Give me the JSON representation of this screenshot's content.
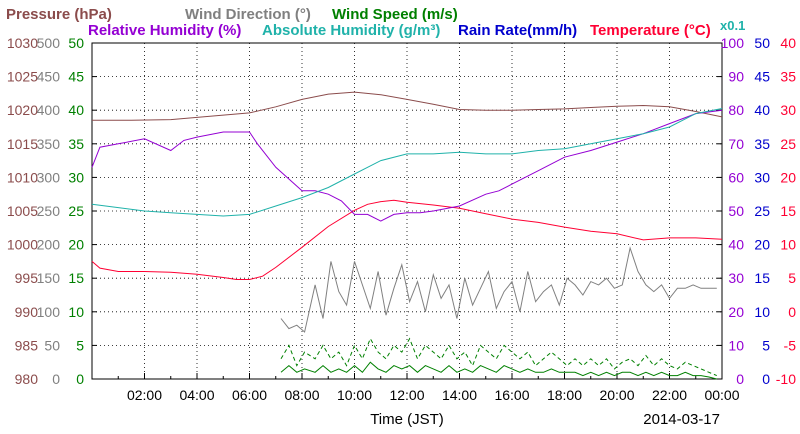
{
  "chart_data": {
    "type": "line",
    "date": "2014-03-17",
    "xlabel": "Time (JST)",
    "x_ticks": [
      "02:00",
      "04:00",
      "06:00",
      "08:00",
      "10:00",
      "12:00",
      "14:00",
      "16:00",
      "18:00",
      "20:00",
      "22:00",
      "00:00"
    ],
    "x_range_hours": [
      0,
      24
    ],
    "grid": true,
    "colors": {
      "pressure": "#8b4c4c",
      "wind_direction": "#808080",
      "wind_speed": "#008000",
      "relative_humidity": "#9400d3",
      "absolute_humidity": "#20b2aa",
      "rain_rate": "#0000cd",
      "temperature": "#ff0033"
    },
    "legend": {
      "row1": [
        {
          "key": "pressure",
          "label": "Pressure (hPa)"
        },
        {
          "key": "wind_direction",
          "label": "Wind Direction (°)"
        },
        {
          "key": "wind_speed",
          "label": "Wind Speed (m/s)"
        }
      ],
      "row2": [
        {
          "key": "relative_humidity",
          "label": "Relative Humidity (%)"
        },
        {
          "key": "absolute_humidity",
          "label": "Absolute Humidity (g/m³)"
        },
        {
          "key": "rain_rate",
          "label": "Rain Rate(mm/h)"
        },
        {
          "key": "temperature",
          "label": "Temperature (°C)"
        }
      ],
      "abs_humidity_scale_note": "x0.1"
    },
    "axes": {
      "pressure": {
        "ticks": [
          "1030",
          "1025",
          "1020",
          "1015",
          "1010",
          "1005",
          "1000",
          "995",
          "990",
          "985",
          "980"
        ],
        "range": [
          980,
          1030
        ]
      },
      "wind_direction": {
        "ticks": [
          "500",
          "450",
          "400",
          "350",
          "300",
          "250",
          "200",
          "150",
          "100",
          "50",
          "0"
        ],
        "range": [
          0,
          500
        ]
      },
      "wind_speed": {
        "ticks": [
          "50",
          "45",
          "40",
          "35",
          "30",
          "25",
          "20",
          "15",
          "10",
          "5",
          "0"
        ],
        "range": [
          0,
          50
        ]
      },
      "relative_humidity": {
        "ticks": [
          "100",
          "90",
          "80",
          "70",
          "60",
          "50",
          "40",
          "30",
          "20",
          "10",
          "0"
        ],
        "range": [
          0,
          100
        ]
      },
      "rain_rate": {
        "ticks": [
          "50",
          "45",
          "40",
          "35",
          "30",
          "25",
          "20",
          "15",
          "10",
          "5",
          "0"
        ],
        "range": [
          0,
          50
        ]
      },
      "temperature": {
        "ticks": [
          "40",
          "35",
          "30",
          "25",
          "20",
          "15",
          "10",
          "5",
          "0",
          "-5",
          "-10"
        ],
        "range": [
          -10,
          40
        ]
      }
    },
    "series": [
      {
        "name": "Pressure (hPa)",
        "key": "pressure",
        "axis": "pressure",
        "style": "solid",
        "x": [
          0,
          1.5,
          3,
          4.5,
          6,
          7,
          8,
          9,
          10,
          11,
          12,
          13,
          14,
          15,
          16,
          17,
          18,
          19,
          20,
          21,
          22,
          23,
          24
        ],
        "y": [
          1018.5,
          1018.5,
          1018.6,
          1019.1,
          1019.6,
          1020.5,
          1021.6,
          1022.4,
          1022.7,
          1022.3,
          1021.6,
          1020.9,
          1020.1,
          1020,
          1020,
          1020.1,
          1020.2,
          1020.4,
          1020.6,
          1020.7,
          1020.5,
          1019.8,
          1019
        ]
      },
      {
        "name": "Temperature (°C)",
        "key": "temperature",
        "axis": "temperature",
        "style": "solid",
        "x": [
          0,
          0.3,
          1,
          2,
          3,
          4,
          5,
          5.5,
          6,
          6.5,
          7,
          8,
          9,
          10,
          10.5,
          11,
          11.5,
          12,
          13,
          14,
          15,
          16,
          17,
          18,
          19,
          20,
          21,
          22,
          23,
          24
        ],
        "y": [
          7.5,
          6.5,
          6,
          6,
          5.9,
          5.6,
          5.1,
          4.8,
          4.8,
          5.3,
          6.6,
          9.6,
          12.7,
          15.1,
          16,
          16.4,
          16.6,
          16.3,
          15.9,
          15.4,
          14.6,
          13.8,
          13.3,
          12.6,
          12,
          11.6,
          10.7,
          11,
          11,
          10.8
        ]
      },
      {
        "name": "Relative Humidity (%)",
        "key": "relative_humidity",
        "axis": "relative_humidity",
        "style": "solid",
        "x": [
          0,
          0.3,
          1,
          2,
          3,
          3.5,
          4,
          5,
          5.5,
          6,
          6.3,
          7,
          8,
          8.5,
          9,
          9.5,
          10,
          10.5,
          11,
          11.5,
          12,
          12.5,
          13,
          14,
          15,
          15.5,
          16,
          17,
          18,
          19,
          20,
          21,
          22,
          23,
          24
        ],
        "y": [
          63,
          69,
          70,
          71.5,
          68,
          71,
          72,
          73.5,
          73.5,
          73.5,
          70,
          63,
          56,
          56,
          55,
          53,
          49,
          49,
          47,
          49,
          49.5,
          49.5,
          50,
          51.5,
          55,
          56,
          58,
          62,
          66,
          68,
          70.5,
          73,
          76,
          79,
          80
        ]
      },
      {
        "name": "Absolute Humidity (g/m³)",
        "key": "absolute_humidity",
        "axis": "relative_humidity",
        "style": "solid",
        "x": [
          0,
          1,
          2,
          3,
          4,
          5,
          6,
          7,
          8,
          9,
          10,
          10.5,
          11,
          12,
          13,
          14,
          15,
          16,
          17,
          18,
          19,
          20,
          21,
          22,
          23,
          24
        ],
        "y": [
          52,
          51,
          50,
          49.5,
          49,
          48.5,
          49,
          51.5,
          54,
          57,
          61,
          63,
          65,
          67,
          67,
          67.5,
          67,
          67,
          68,
          68.5,
          70,
          71.5,
          73,
          75,
          79,
          80.5
        ]
      },
      {
        "name": "Wind Direction (°)",
        "key": "wind_direction",
        "axis": "wind_direction",
        "style": "solid",
        "x": [
          7.2,
          7.5,
          7.8,
          8.1,
          8.5,
          8.8,
          9.1,
          9.4,
          9.7,
          10.0,
          10.3,
          10.6,
          10.9,
          11.2,
          11.5,
          11.8,
          12.1,
          12.4,
          12.7,
          13.0,
          13.3,
          13.6,
          13.9,
          14.2,
          14.5,
          14.8,
          15.1,
          15.4,
          15.7,
          16.0,
          16.3,
          16.6,
          16.9,
          17.2,
          17.5,
          17.8,
          18.1,
          18.4,
          18.7,
          19.0,
          19.3,
          19.6,
          19.9,
          20.2,
          20.5,
          20.8,
          21.1,
          21.4,
          21.7,
          22.0,
          22.3,
          22.6,
          22.9,
          23.2,
          23.5,
          23.8
        ],
        "y": [
          90,
          75,
          80,
          70,
          140,
          90,
          175,
          130,
          110,
          175,
          140,
          105,
          160,
          95,
          135,
          170,
          115,
          145,
          100,
          155,
          120,
          140,
          90,
          150,
          110,
          135,
          160,
          105,
          130,
          145,
          100,
          160,
          115,
          130,
          140,
          110,
          150,
          140,
          125,
          145,
          140,
          150,
          135,
          140,
          195,
          160,
          140,
          130,
          140,
          120,
          135,
          135,
          140,
          135,
          135,
          135
        ]
      },
      {
        "name": "Wind Speed (m/s)",
        "key": "wind_speed",
        "axis": "wind_speed",
        "style": "dashed",
        "x": [
          7.2,
          7.5,
          7.8,
          8.1,
          8.5,
          8.8,
          9.1,
          9.4,
          9.7,
          10.0,
          10.3,
          10.6,
          10.9,
          11.2,
          11.5,
          11.8,
          12.1,
          12.4,
          12.7,
          13.0,
          13.3,
          13.6,
          13.9,
          14.2,
          14.5,
          14.8,
          15.1,
          15.4,
          15.7,
          16.0,
          16.3,
          16.6,
          16.9,
          17.2,
          17.5,
          17.8,
          18.1,
          18.4,
          18.7,
          19.0,
          19.3,
          19.6,
          19.9,
          20.2,
          20.5,
          20.8,
          21.1,
          21.4,
          21.7,
          22.0,
          22.3,
          22.6,
          22.9,
          23.2,
          23.5,
          23.8
        ],
        "y": [
          3,
          5,
          2,
          4,
          3,
          5,
          3,
          4,
          2,
          5,
          3,
          6,
          4,
          3,
          5,
          4,
          6,
          3,
          5,
          4,
          3,
          5,
          3,
          4,
          2,
          5,
          4,
          3,
          5,
          4,
          3,
          4,
          2,
          3,
          4,
          3,
          2,
          3,
          2,
          3,
          2,
          3,
          1.5,
          2.5,
          3,
          2,
          3.5,
          2,
          3,
          2,
          1.5,
          2.5,
          2,
          1.5,
          1,
          0.5
        ]
      },
      {
        "name": "Wind Speed (m/s)",
        "key": "wind_speed",
        "axis": "wind_speed",
        "style": "solid",
        "x": [
          7.2,
          7.5,
          7.8,
          8.1,
          8.5,
          8.8,
          9.1,
          9.4,
          9.7,
          10.0,
          10.3,
          10.6,
          10.9,
          11.2,
          11.5,
          11.8,
          12.1,
          12.4,
          12.7,
          13.0,
          13.3,
          13.6,
          13.9,
          14.2,
          14.5,
          14.8,
          15.1,
          15.4,
          15.7,
          16.0,
          16.3,
          16.6,
          16.9,
          17.2,
          17.5,
          17.8,
          18.1,
          18.4,
          18.7,
          19.0,
          19.3,
          19.6,
          19.9,
          20.2,
          20.5,
          20.8,
          21.1,
          21.4,
          21.7,
          22.0,
          22.3,
          22.6,
          22.9,
          23.2,
          23.5,
          23.8
        ],
        "y": [
          1,
          2,
          1,
          1.5,
          1,
          2,
          1,
          1.5,
          1,
          2,
          1,
          2.5,
          1.5,
          1,
          2,
          1.5,
          2,
          1,
          2,
          1.5,
          1,
          2,
          1,
          1.5,
          1,
          2,
          1.5,
          1,
          2,
          1.5,
          1,
          1.5,
          1,
          1,
          1.5,
          1,
          1,
          1,
          0.5,
          1,
          0.5,
          1,
          0.5,
          1,
          1,
          0.5,
          1,
          0.5,
          1,
          0.5,
          0.5,
          1,
          0.5,
          0.5,
          0.3,
          0
        ]
      }
    ]
  }
}
